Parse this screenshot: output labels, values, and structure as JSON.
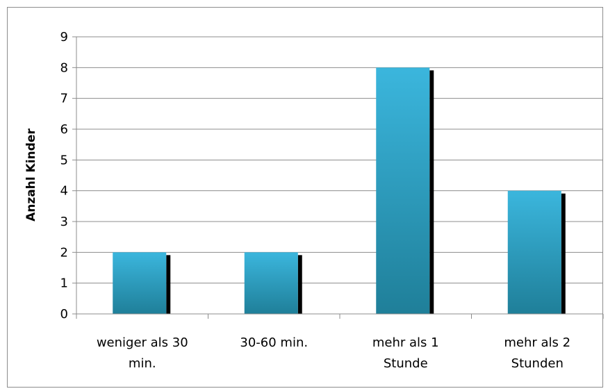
{
  "chart_data": {
    "type": "bar",
    "title": "",
    "xlabel": "",
    "ylabel": "Anzahl Kinder",
    "categories": [
      [
        "weniger als 30",
        "min."
      ],
      [
        "30-60 min."
      ],
      [
        "mehr als 1",
        "Stunde"
      ],
      [
        "mehr als 2",
        "Stunden"
      ]
    ],
    "values": [
      2,
      2,
      8,
      4
    ],
    "ylim": [
      0,
      9
    ],
    "yticks": [
      0,
      1,
      2,
      3,
      4,
      5,
      6,
      7,
      8,
      9
    ],
    "grid": true,
    "legend": "none",
    "colors": {
      "bar_top": "#3bb6dd",
      "bar_bottom": "#1f7f99",
      "shadow": "#000000",
      "grid": "#8c8c8c"
    }
  }
}
